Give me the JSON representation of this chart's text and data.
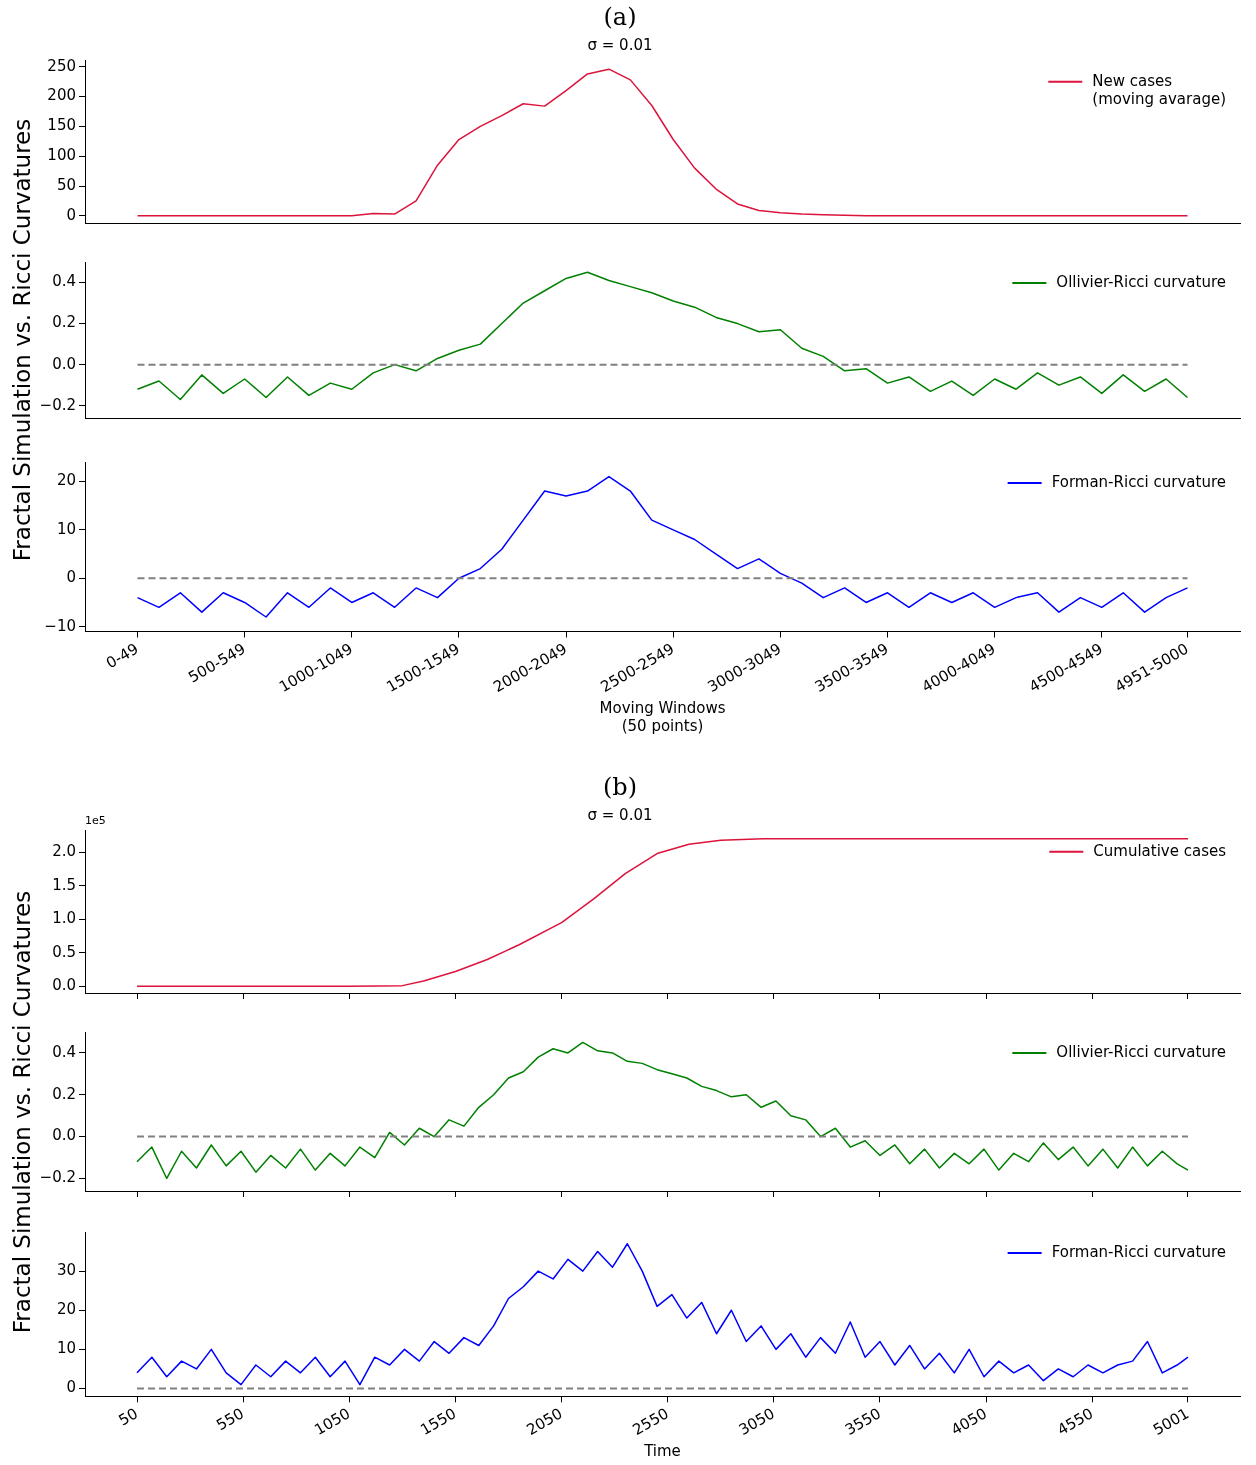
{
  "chart_data": [
    {
      "type": "line",
      "title": "(a)",
      "subtitle": "σ = 0.01",
      "categories": [
        null,
        null,
        null,
        null,
        null,
        null,
        null,
        null,
        null,
        null,
        null,
        null,
        null,
        null,
        null,
        null,
        null,
        null,
        null,
        null,
        null,
        null,
        null,
        null,
        null,
        null,
        null,
        null,
        null,
        null,
        null,
        null,
        null,
        null,
        null,
        null,
        null,
        null,
        null,
        null,
        null,
        null,
        null,
        null,
        null,
        null,
        null,
        null,
        null,
        null
      ],
      "ylim": [
        -12,
        260
      ],
      "yticks": [
        0,
        50,
        100,
        150,
        200,
        250
      ],
      "tick_labels": "y",
      "legend": "top right",
      "series": [
        {
          "name": "New cases\n(moving avarage)",
          "color": "#dc143c",
          "values": [
            0,
            0,
            0,
            0,
            0,
            0,
            0,
            0,
            0,
            0,
            0,
            4,
            3,
            25,
            85,
            128,
            150,
            168,
            188,
            184,
            210,
            238,
            246,
            228,
            185,
            128,
            80,
            45,
            20,
            9,
            5,
            3,
            2,
            1,
            0,
            0,
            0,
            0,
            0,
            0,
            0,
            0,
            0,
            0,
            0,
            0,
            0,
            0,
            0,
            0
          ]
        }
      ]
    },
    {
      "type": "line",
      "ylabel": "Fractal Simulation vs. Ricci Curvatures",
      "categories": [
        null,
        null,
        null,
        null,
        null,
        null,
        null,
        null,
        null,
        null,
        null,
        null,
        null,
        null,
        null,
        null,
        null,
        null,
        null,
        null,
        null,
        null,
        null,
        null,
        null,
        null,
        null,
        null,
        null,
        null,
        null,
        null,
        null,
        null,
        null,
        null,
        null,
        null,
        null,
        null,
        null,
        null,
        null,
        null,
        null,
        null,
        null,
        null,
        null,
        null
      ],
      "ylim": [
        -0.26,
        0.5
      ],
      "yticks": [
        {
          "value": -0.2,
          "label": "−0.2"
        },
        {
          "value": 0,
          "label": "0.0"
        },
        {
          "value": 0.2,
          "label": "0.2"
        },
        {
          "value": 0.4,
          "label": "0.4"
        }
      ],
      "tick_labels": "y",
      "legend": "top right",
      "ref_lines": [
        {
          "axis": "y",
          "value": 0,
          "color": "#808080",
          "line_style": "dashed"
        }
      ],
      "series": [
        {
          "name": "Ollivier-Ricci curvature",
          "color": "#008000",
          "values": [
            -0.12,
            -0.08,
            -0.17,
            -0.05,
            -0.14,
            -0.07,
            -0.16,
            -0.06,
            -0.15,
            -0.09,
            -0.12,
            -0.04,
            0.0,
            -0.03,
            0.03,
            0.07,
            0.1,
            0.2,
            0.3,
            0.36,
            0.42,
            0.45,
            0.41,
            0.38,
            0.35,
            0.31,
            0.28,
            0.23,
            0.2,
            0.16,
            0.17,
            0.08,
            0.04,
            -0.03,
            -0.02,
            -0.09,
            -0.06,
            -0.13,
            -0.08,
            -0.15,
            -0.07,
            -0.12,
            -0.04,
            -0.1,
            -0.06,
            -0.14,
            -0.05,
            -0.13,
            -0.07,
            -0.16
          ]
        }
      ]
    },
    {
      "type": "line",
      "xlabel": "Moving Windows\n(50 points)",
      "categories": [
        "0-49",
        null,
        null,
        null,
        null,
        "500-549",
        null,
        null,
        null,
        null,
        "1000-1049",
        null,
        null,
        null,
        null,
        "1500-1549",
        null,
        null,
        null,
        null,
        "2000-2049",
        null,
        null,
        null,
        null,
        "2500-2549",
        null,
        null,
        null,
        null,
        "3000-3049",
        null,
        null,
        null,
        null,
        "3500-3549",
        null,
        null,
        null,
        null,
        "4000-4049",
        null,
        null,
        null,
        null,
        "4500-4549",
        null,
        null,
        null,
        "4951-5000"
      ],
      "ylim": [
        -11,
        24
      ],
      "yticks": [
        {
          "value": -10,
          "label": "−10"
        },
        0,
        10,
        20
      ],
      "legend": "top right",
      "ref_lines": [
        {
          "axis": "y",
          "value": 0,
          "color": "#808080",
          "line_style": "dashed"
        }
      ],
      "series": [
        {
          "name": "Forman-Ricci curvature",
          "color": "#0000ff",
          "values": [
            -4,
            -6,
            -3,
            -7,
            -3,
            -5,
            -8,
            -3,
            -6,
            -2,
            -5,
            -3,
            -6,
            -2,
            -4,
            0,
            2,
            6,
            12,
            18,
            17,
            18,
            21,
            18,
            12,
            10,
            8,
            5,
            2,
            4,
            1,
            -1,
            -4,
            -2,
            -5,
            -3,
            -6,
            -3,
            -5,
            -3,
            -6,
            -4,
            -3,
            -7,
            -4,
            -6,
            -3,
            -7,
            -4,
            -2
          ]
        }
      ]
    },
    {
      "type": "line",
      "title": "(b)",
      "subtitle": "σ = 0.01",
      "annotations": [
        "1e5"
      ],
      "xlim": [
        -195,
        5246
      ],
      "xticks": [
        50,
        550,
        1050,
        1550,
        2050,
        2550,
        3050,
        3550,
        4050,
        4550,
        5001
      ],
      "ylim": [
        -0.1,
        2.32
      ],
      "yticks": [
        {
          "value": 0,
          "label": "0.0"
        },
        0.5,
        {
          "value": 1,
          "label": "1.0"
        },
        1.5,
        {
          "value": 2,
          "label": "2.0"
        }
      ],
      "tick_labels": "y",
      "legend": "top right",
      "series": [
        {
          "name": "Cumulative cases",
          "color": "#dc143c",
          "x": [
            50,
            1050,
            1300,
            1400,
            1550,
            1700,
            1850,
            2050,
            2200,
            2350,
            2500,
            2650,
            2800,
            3000,
            5001
          ],
          "values": [
            0,
            0,
            0.01,
            0.08,
            0.22,
            0.4,
            0.62,
            0.95,
            1.3,
            1.68,
            1.98,
            2.12,
            2.18,
            2.2,
            2.2
          ]
        }
      ]
    },
    {
      "type": "line",
      "ylabel": "Fractal Simulation vs. Ricci Curvatures",
      "xlim": [
        -195,
        5246
      ],
      "xticks": [
        50,
        550,
        1050,
        1550,
        2050,
        2550,
        3050,
        3550,
        4050,
        4550,
        5001
      ],
      "ylim": [
        -0.26,
        0.5
      ],
      "yticks": [
        {
          "value": -0.2,
          "label": "−0.2"
        },
        {
          "value": 0,
          "label": "0.0"
        },
        {
          "value": 0.2,
          "label": "0.2"
        },
        {
          "value": 0.4,
          "label": "0.4"
        }
      ],
      "tick_labels": "y",
      "legend": "top right",
      "ref_lines": [
        {
          "axis": "y",
          "value": 0,
          "color": "#808080",
          "line_style": "dashed"
        }
      ],
      "x": [
        50,
        120,
        190,
        260,
        330,
        400,
        470,
        540,
        610,
        680,
        750,
        820,
        890,
        960,
        1030,
        1100,
        1170,
        1240,
        1310,
        1380,
        1450,
        1520,
        1590,
        1660,
        1730,
        1800,
        1870,
        1940,
        2010,
        2080,
        2150,
        2220,
        2290,
        2360,
        2430,
        2500,
        2570,
        2640,
        2710,
        2780,
        2850,
        2920,
        2990,
        3060,
        3130,
        3200,
        3270,
        3340,
        3410,
        3480,
        3550,
        3620,
        3690,
        3760,
        3830,
        3900,
        3970,
        4040,
        4110,
        4180,
        4250,
        4320,
        4390,
        4460,
        4530,
        4600,
        4670,
        4740,
        4810,
        4880,
        4950,
        5001
      ],
      "series": [
        {
          "name": "Ollivier-Ricci curvature",
          "color": "#008000",
          "values": [
            -0.12,
            -0.05,
            -0.2,
            -0.07,
            -0.15,
            -0.04,
            -0.14,
            -0.07,
            -0.17,
            -0.09,
            -0.15,
            -0.06,
            -0.16,
            -0.08,
            -0.14,
            -0.05,
            -0.1,
            0.02,
            -0.04,
            0.04,
            0.0,
            0.08,
            0.05,
            0.14,
            0.2,
            0.28,
            0.31,
            0.38,
            0.42,
            0.4,
            0.45,
            0.41,
            0.4,
            0.36,
            0.35,
            0.32,
            0.3,
            0.28,
            0.24,
            0.22,
            0.19,
            0.2,
            0.14,
            0.17,
            0.1,
            0.08,
            0.0,
            0.04,
            -0.05,
            -0.02,
            -0.09,
            -0.04,
            -0.13,
            -0.06,
            -0.15,
            -0.08,
            -0.13,
            -0.06,
            -0.16,
            -0.08,
            -0.12,
            -0.03,
            -0.11,
            -0.05,
            -0.14,
            -0.06,
            -0.15,
            -0.05,
            -0.14,
            -0.07,
            -0.13,
            -0.16
          ]
        }
      ]
    },
    {
      "type": "line",
      "xlabel": "Time",
      "xlim": [
        -195,
        5246
      ],
      "xticks": [
        50,
        550,
        1050,
        1550,
        2050,
        2550,
        3050,
        3550,
        4050,
        4550,
        5001
      ],
      "ylim": [
        -2,
        40
      ],
      "yticks": [
        0,
        10,
        20,
        30
      ],
      "legend": "top right",
      "ref_lines": [
        {
          "axis": "y",
          "value": 0,
          "color": "#808080",
          "line_style": "dashed"
        }
      ],
      "x": [
        50,
        120,
        190,
        260,
        330,
        400,
        470,
        540,
        610,
        680,
        750,
        820,
        890,
        960,
        1030,
        1100,
        1170,
        1240,
        1310,
        1380,
        1450,
        1520,
        1590,
        1660,
        1730,
        1800,
        1870,
        1940,
        2010,
        2080,
        2150,
        2220,
        2290,
        2360,
        2430,
        2500,
        2570,
        2640,
        2710,
        2780,
        2850,
        2920,
        2990,
        3060,
        3130,
        3200,
        3270,
        3340,
        3410,
        3480,
        3550,
        3620,
        3690,
        3760,
        3830,
        3900,
        3970,
        4040,
        4110,
        4180,
        4250,
        4320,
        4390,
        4460,
        4530,
        4600,
        4670,
        4740,
        4810,
        4880,
        4950,
        5001
      ],
      "series": [
        {
          "name": "Forman-Ricci curvature",
          "color": "#0000ff",
          "values": [
            4,
            8,
            3,
            7,
            5,
            10,
            4,
            1,
            6,
            3,
            7,
            4,
            8,
            3,
            7,
            1,
            8,
            6,
            10,
            7,
            12,
            9,
            13,
            11,
            16,
            23,
            26,
            30,
            28,
            33,
            30,
            35,
            31,
            37,
            30,
            21,
            24,
            18,
            22,
            14,
            20,
            12,
            16,
            10,
            14,
            8,
            13,
            9,
            17,
            8,
            12,
            6,
            11,
            5,
            9,
            4,
            10,
            3,
            7,
            4,
            6,
            2,
            5,
            3,
            6,
            4,
            6,
            7,
            12,
            4,
            6,
            8
          ]
        }
      ]
    }
  ]
}
